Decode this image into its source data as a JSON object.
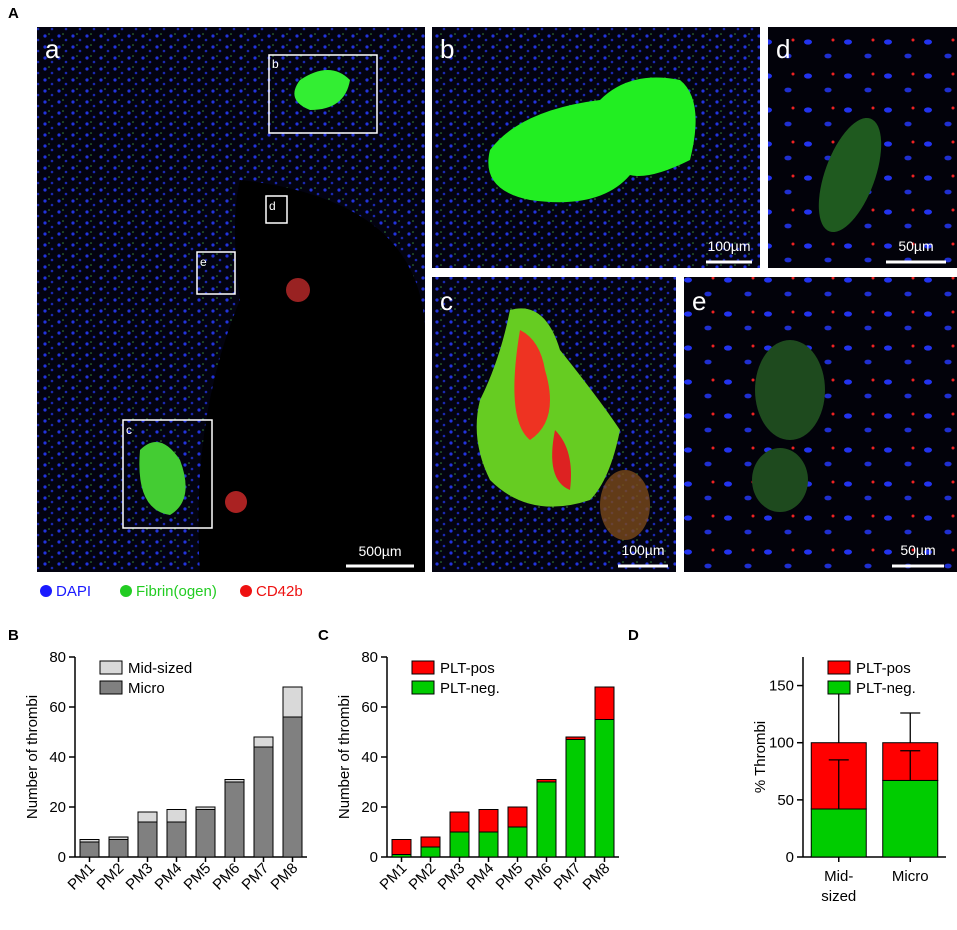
{
  "figure": {
    "panel": "A",
    "images": [
      {
        "label": "a",
        "scale_bar": "500µm"
      },
      {
        "label": "b",
        "scale_bar": "100µm"
      },
      {
        "label": "d",
        "scale_bar": "50µm"
      },
      {
        "label": "c",
        "scale_bar": "100µm"
      },
      {
        "label": "e",
        "scale_bar": "50µm"
      }
    ],
    "inset_labels": [
      "b",
      "d",
      "e",
      "c"
    ],
    "stain_legend": [
      {
        "name": "DAPI",
        "color": "#1a1aff"
      },
      {
        "name": "Fibrin(ogen)",
        "color": "#22cc22"
      },
      {
        "name": "CD42b",
        "color": "#ee1111"
      }
    ]
  },
  "chart_data": [
    {
      "type": "bar",
      "stacked": true,
      "panel": "B",
      "ylabel": "Number of thrombi",
      "categories": [
        "PM1",
        "PM2",
        "PM3",
        "PM4",
        "PM5",
        "PM6",
        "PM7",
        "PM8"
      ],
      "series": [
        {
          "name": "Micro",
          "color": "#808080",
          "values": [
            6,
            7,
            14,
            14,
            19,
            30,
            44,
            56
          ]
        },
        {
          "name": "Mid-sized",
          "color": "#d9d9d9",
          "values": [
            1,
            1,
            4,
            5,
            1,
            1,
            4,
            12
          ]
        }
      ],
      "ylim": [
        0,
        80
      ],
      "yticks": [
        0,
        20,
        40,
        60,
        80
      ],
      "legend": "upper left"
    },
    {
      "type": "bar",
      "stacked": true,
      "panel": "C",
      "ylabel": "Number of thrombi",
      "categories": [
        "PM1",
        "PM2",
        "PM3",
        "PM4",
        "PM5",
        "PM6",
        "PM7",
        "PM8"
      ],
      "series": [
        {
          "name": "PLT-neg.",
          "color": "#00cc00",
          "values": [
            1,
            4,
            10,
            10,
            12,
            30,
            47,
            55
          ]
        },
        {
          "name": "PLT-pos",
          "color": "#ff0000",
          "values": [
            6,
            4,
            8,
            9,
            8,
            1,
            1,
            13
          ]
        }
      ],
      "ylim": [
        0,
        80
      ],
      "yticks": [
        0,
        20,
        40,
        60,
        80
      ],
      "legend": "upper left"
    },
    {
      "type": "bar",
      "stacked": true,
      "panel": "D",
      "ylabel": "% Thrombi",
      "categories": [
        "Mid-sized",
        "Micro"
      ],
      "series": [
        {
          "name": "PLT-neg.",
          "color": "#00cc00",
          "values": [
            42,
            67
          ],
          "errors": [
            43,
            26
          ]
        },
        {
          "name": "PLT-pos",
          "color": "#ff0000",
          "values": [
            58,
            33
          ],
          "errors": [
            44,
            26
          ]
        }
      ],
      "ylim": [
        0,
        175
      ],
      "yticks": [
        0,
        50,
        100,
        150
      ],
      "legend": "upper left"
    }
  ]
}
